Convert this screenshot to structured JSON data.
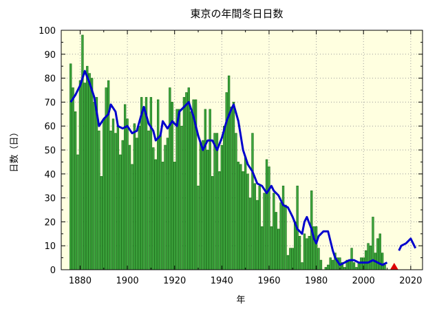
{
  "chart_data": {
    "type": "bar",
    "title": "東京の年間冬日日数",
    "xlabel": "年",
    "ylabel": "日数（日）",
    "xlim": [
      1872,
      2025
    ],
    "ylim": [
      0,
      100
    ],
    "xticks": [
      1880,
      1900,
      1920,
      1940,
      1960,
      1980,
      2000,
      2020
    ],
    "yticks": [
      0,
      10,
      20,
      30,
      40,
      50,
      60,
      70,
      80,
      90,
      100
    ],
    "grid": true,
    "x_start": 1876,
    "values": [
      86,
      76,
      66,
      48,
      79,
      98,
      78,
      85,
      82,
      80,
      70,
      72,
      58,
      39,
      63,
      76,
      79,
      58,
      63,
      57,
      60,
      48,
      54,
      69,
      63,
      52,
      44,
      61,
      55,
      60,
      72,
      68,
      72,
      58,
      72,
      51,
      46,
      71,
      56,
      45,
      52,
      55,
      76,
      70,
      45,
      67,
      67,
      60,
      72,
      74,
      76,
      66,
      71,
      71,
      35,
      53,
      54,
      67,
      50,
      67,
      39,
      57,
      57,
      41,
      52,
      60,
      74,
      81,
      68,
      70,
      57,
      45,
      44,
      41,
      47,
      40,
      30,
      57,
      36,
      29,
      35,
      18,
      32,
      46,
      43,
      18,
      32,
      24,
      17,
      28,
      35,
      27,
      6,
      9,
      9,
      20,
      35,
      14,
      3,
      15,
      13,
      14,
      33,
      18,
      18,
      9,
      4,
      0,
      1,
      2,
      5,
      4,
      7,
      5,
      5,
      3,
      1,
      4,
      4,
      9,
      3,
      1,
      3,
      5,
      5,
      8,
      11,
      10,
      22,
      7,
      13,
      15,
      7,
      2
    ],
    "series": [
      {
        "type": "line",
        "color": "#0000cc",
        "points": [
          [
            1876,
            70
          ],
          [
            1878,
            73
          ],
          [
            1880,
            77
          ],
          [
            1882,
            83
          ],
          [
            1884,
            78
          ],
          [
            1886,
            72
          ],
          [
            1888,
            60
          ],
          [
            1890,
            63
          ],
          [
            1892,
            65
          ],
          [
            1893,
            69
          ],
          [
            1895,
            66
          ],
          [
            1896,
            60
          ],
          [
            1898,
            59
          ],
          [
            1900,
            60
          ],
          [
            1902,
            57
          ],
          [
            1904,
            58
          ],
          [
            1906,
            65
          ],
          [
            1907,
            68
          ],
          [
            1909,
            61
          ],
          [
            1911,
            58
          ],
          [
            1912,
            54
          ],
          [
            1914,
            56
          ],
          [
            1915,
            62
          ],
          [
            1917,
            59
          ],
          [
            1919,
            62
          ],
          [
            1921,
            60
          ],
          [
            1922,
            66
          ],
          [
            1924,
            68
          ],
          [
            1926,
            70
          ],
          [
            1928,
            64
          ],
          [
            1930,
            56
          ],
          [
            1932,
            50
          ],
          [
            1934,
            54
          ],
          [
            1936,
            54
          ],
          [
            1938,
            50
          ],
          [
            1940,
            55
          ],
          [
            1942,
            62
          ],
          [
            1944,
            67
          ],
          [
            1945,
            69
          ],
          [
            1947,
            62
          ],
          [
            1949,
            50
          ],
          [
            1951,
            44
          ],
          [
            1953,
            41
          ],
          [
            1955,
            36
          ],
          [
            1957,
            35
          ],
          [
            1959,
            32
          ],
          [
            1961,
            35
          ],
          [
            1962,
            33
          ],
          [
            1964,
            31
          ],
          [
            1966,
            27
          ],
          [
            1968,
            26
          ],
          [
            1970,
            22
          ],
          [
            1972,
            17
          ],
          [
            1974,
            15
          ],
          [
            1975,
            20
          ],
          [
            1976,
            22
          ],
          [
            1978,
            17
          ],
          [
            1979,
            13
          ],
          [
            1980,
            11
          ],
          [
            1981,
            14
          ],
          [
            1983,
            16
          ],
          [
            1985,
            16
          ],
          [
            1987,
            8
          ],
          [
            1988,
            5
          ],
          [
            1990,
            2
          ],
          [
            1992,
            3
          ],
          [
            1994,
            4
          ],
          [
            1996,
            4
          ],
          [
            1998,
            3
          ],
          [
            2000,
            3
          ],
          [
            2002,
            3
          ],
          [
            2004,
            4
          ],
          [
            2006,
            3
          ],
          [
            2008,
            2
          ],
          [
            2010,
            3
          ]
        ]
      },
      {
        "type": "line",
        "color": "#0000cc",
        "points": [
          [
            2015,
            8
          ],
          [
            2016,
            10
          ],
          [
            2018,
            11
          ],
          [
            2020,
            13
          ],
          [
            2022,
            9
          ]
        ]
      }
    ],
    "annotations": [
      {
        "type": "marker",
        "shape": "triangle",
        "color": "#dd0000",
        "x": 2013,
        "y": 0
      }
    ],
    "bar_color": "#3da53d",
    "bar_edge_color": "#156b15",
    "plot_bg": "#ffffe0"
  }
}
